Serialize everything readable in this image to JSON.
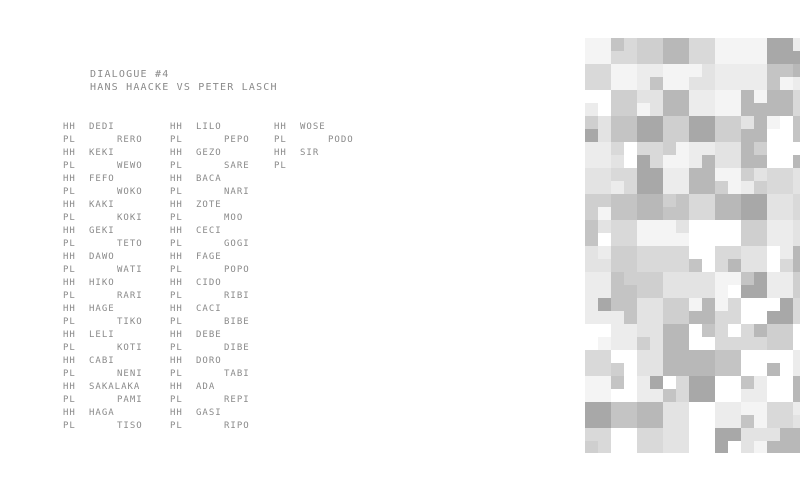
{
  "title": {
    "line1": "DIALOGUE #4",
    "line2": "HANS HAACKE VS PETER LASCH"
  },
  "columns": [
    [
      [
        "HH",
        "DEDI"
      ],
      [
        "PL",
        "RERO"
      ],
      [
        "HH",
        "KEKI"
      ],
      [
        "PL",
        "WEWO"
      ],
      [
        "HH",
        "FEFO"
      ],
      [
        "PL",
        "WOKO"
      ],
      [
        "HH",
        "KAKI"
      ],
      [
        "PL",
        "KOKI"
      ],
      [
        "HH",
        "GEKI"
      ],
      [
        "PL",
        "TETO"
      ],
      [
        "HH",
        "DAWO"
      ],
      [
        "PL",
        "WATI"
      ],
      [
        "HH",
        "HIKO"
      ],
      [
        "PL",
        "RARI"
      ],
      [
        "HH",
        "HAGE"
      ],
      [
        "PL",
        "TIKO"
      ],
      [
        "HH",
        "LELI"
      ],
      [
        "PL",
        "KOTI"
      ],
      [
        "HH",
        "CABI"
      ],
      [
        "PL",
        "NENI"
      ],
      [
        "HH",
        "SAKALAKA"
      ],
      [
        "PL",
        "PAMI"
      ],
      [
        "HH",
        "HAGA"
      ],
      [
        "PL",
        "TISO"
      ]
    ],
    [
      [
        "HH",
        "LILO"
      ],
      [
        "PL",
        "PEPO"
      ],
      [
        "HH",
        "GEZO"
      ],
      [
        "PL",
        "SARE"
      ],
      [
        "HH",
        "BACA"
      ],
      [
        "PL",
        "NARI"
      ],
      [
        "HH",
        "ZOTE"
      ],
      [
        "PL",
        "MOO"
      ],
      [
        "HH",
        "CECI"
      ],
      [
        "PL",
        "GOGI"
      ],
      [
        "HH",
        "FAGE"
      ],
      [
        "PL",
        "POPO"
      ],
      [
        "HH",
        "CIDO"
      ],
      [
        "PL",
        "RIBI"
      ],
      [
        "HH",
        "CACI"
      ],
      [
        "PL",
        "BIBE"
      ],
      [
        "HH",
        "DEBE"
      ],
      [
        "PL",
        "DIBE"
      ],
      [
        "HH",
        "DORO"
      ],
      [
        "PL",
        "TABI"
      ],
      [
        "HH",
        "ADA"
      ],
      [
        "PL",
        "REPI"
      ],
      [
        "HH",
        "GASI"
      ],
      [
        "PL",
        "RIPO"
      ]
    ],
    [
      [
        "HH",
        "WOSE"
      ],
      [
        "PL",
        "PODO"
      ],
      [
        "HH",
        "SIR"
      ],
      [
        "PL",
        ""
      ]
    ]
  ],
  "colors": {
    "text": "#8a8a8a",
    "mosaic_shades": [
      "#ffffff",
      "#f4f4f4",
      "#ececec",
      "#e3e3e3",
      "#d9d9d9",
      "#cfcfcf",
      "#c4c4c4",
      "#b8b8b8",
      "#a8a8a8"
    ]
  }
}
